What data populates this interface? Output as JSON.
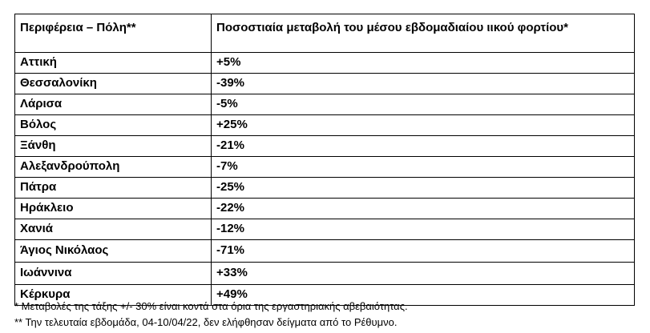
{
  "table": {
    "headers": {
      "region": "Περιφέρεια – Πόλη**",
      "change": "Ποσοστιαία μεταβολή του μέσου εβδομαδιαίου ιικού φορτίου*"
    },
    "rows": [
      {
        "region": "Αττική",
        "change": "+5%"
      },
      {
        "region": "Θεσσαλονίκη",
        "change": "-39%"
      },
      {
        "region": "Λάρισα",
        "change": "-5%"
      },
      {
        "region": "Βόλος",
        "change": "+25%"
      },
      {
        "region": "Ξάνθη",
        "change": "-21%"
      },
      {
        "region": "Αλεξανδρούπολη",
        "change": "-7%"
      },
      {
        "region": "Πάτρα",
        "change": "-25%"
      },
      {
        "region": "Ηράκλειο",
        "change": "-22%"
      },
      {
        "region": "Χανιά",
        "change": "-12%"
      },
      {
        "region": "Άγιος Νικόλαος",
        "change": "-71%"
      },
      {
        "region": "Ιωάννινα",
        "change": "+33%"
      },
      {
        "region": "Κέρκυρα",
        "change": "+49%"
      }
    ]
  },
  "notes": {
    "note1": "* Μεταβολές της τάξης +/- 30% είναι κοντά στα όρια της εργαστηριακής αβεβαιότητας.",
    "note2": "** Την τελευταία εβδομάδα, 04-10/04/22, δεν ελήφθησαν δείγματα από το Ρέθυμνο."
  }
}
